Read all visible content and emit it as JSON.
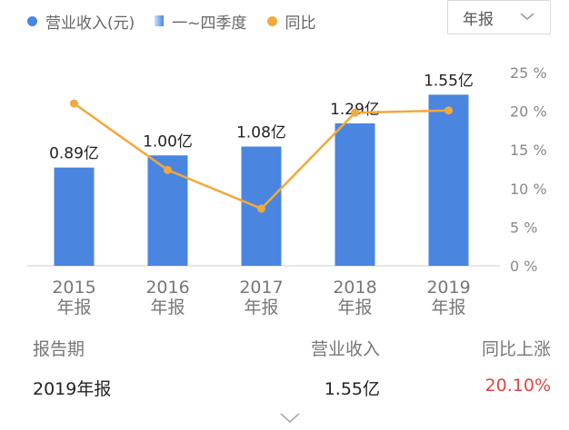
{
  "legend": {
    "revenue": "营业收入(元)",
    "quarters": "一~四季度",
    "yoy": "同比"
  },
  "period_select": {
    "value": "年报"
  },
  "chart_data": {
    "type": "bar",
    "categories": [
      "2015\n年报",
      "2016\n年报",
      "2017\n年报",
      "2018\n年报",
      "2019\n年报"
    ],
    "series": [
      {
        "name": "营业收入(元)",
        "type": "bar",
        "values": [
          0.89,
          1.0,
          1.08,
          1.29,
          1.55
        ],
        "labels": [
          "0.89亿",
          "1.00亿",
          "1.08亿",
          "1.29亿",
          "1.55亿"
        ]
      },
      {
        "name": "同比",
        "type": "line",
        "axis": "right",
        "values": [
          21,
          12.4,
          7.4,
          19.8,
          20.1
        ]
      }
    ],
    "y2_ticks": [
      "25 %",
      "20 %",
      "15 %",
      "10 %",
      "5 %",
      "0 %"
    ],
    "ylim": [
      0,
      1.75
    ],
    "y2lim": [
      0,
      25
    ],
    "colors": {
      "bar": "#4a86e0",
      "line": "#f2a93b"
    }
  },
  "table": {
    "headers": {
      "period": "报告期",
      "revenue": "营业收入",
      "yoy": "同比上涨"
    },
    "row": {
      "period": "2019年报",
      "revenue": "1.55亿",
      "yoy": "20.10%"
    }
  }
}
